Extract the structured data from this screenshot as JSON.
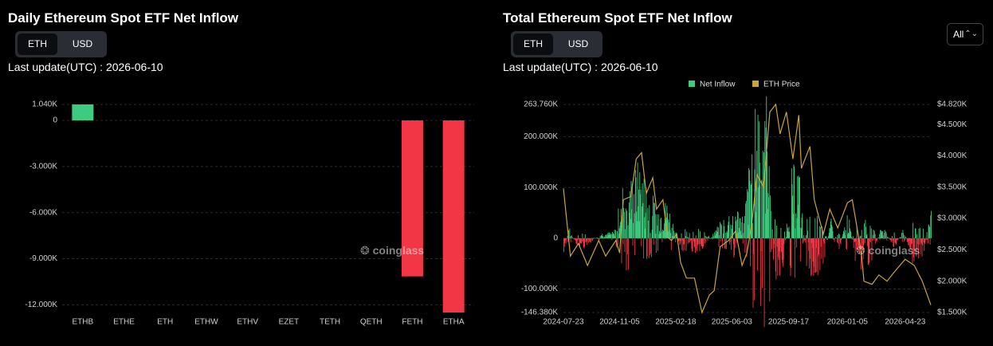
{
  "left": {
    "title": "Daily Ethereum Spot ETF Net Inflow",
    "toggle": {
      "eth": "ETH",
      "usd": "USD",
      "active": "ETH"
    },
    "last_update": "Last update(UTC) : 2026-06-10",
    "watermark": "coinglass"
  },
  "right": {
    "title": "Total Ethereum Spot ETF Net Inflow",
    "toggle": {
      "eth": "ETH",
      "usd": "USD",
      "active": "ETH"
    },
    "last_update": "Last update(UTC) : 2026-06-10",
    "range_select": "All",
    "watermark": "coinglass"
  },
  "colors": {
    "positive": "#3ccb7f",
    "negative": "#f23645",
    "price": "#c9a43a",
    "grid": "#2a2a2a",
    "axis_text": "#cfcfcf"
  },
  "chart_data": [
    {
      "type": "bar",
      "categories": [
        "ETHB",
        "ETHE",
        "ETH",
        "ETHW",
        "ETHV",
        "EZET",
        "TETH",
        "QETH",
        "FETH",
        "ETHA"
      ],
      "values": [
        1040,
        0,
        0,
        0,
        0,
        0,
        0,
        0,
        -10150,
        -12500
      ],
      "ylim": [
        -12500,
        1040
      ],
      "yticks": [
        1040,
        0,
        -3000,
        -6000,
        -9000,
        -12000
      ],
      "ytick_labels": [
        "1.040K",
        "0",
        "-3.000K",
        "-6.000K",
        "-9.000K",
        "-12.000K"
      ],
      "grid": true
    },
    {
      "type": "bar+line",
      "legend": [
        "Net Inflow",
        "ETH Price"
      ],
      "legend_position": "top-center",
      "x_start": "2024-07-23",
      "x_end": "2026-06-10",
      "xtick_labels": [
        "2024-07-23",
        "2024-11-05",
        "2025-02-18",
        "2025-06-03",
        "2025-09-17",
        "2026-01-05",
        "2026-04-23"
      ],
      "y_left_lim": [
        -146380,
        263760
      ],
      "y_left_ticks": [
        263760,
        200000,
        100000,
        0,
        -100000,
        -146380
      ],
      "y_left_tick_labels": [
        "263.760K",
        "200.000K",
        "100.000K",
        "0",
        "-100.000K",
        "-146.380K"
      ],
      "y_right_lim": [
        1500,
        4820
      ],
      "y_right_ticks": [
        4820,
        4500,
        4000,
        3500,
        3000,
        2500,
        2000,
        1500
      ],
      "y_right_tick_labels": [
        "$4.820K",
        "$4.500K",
        "$4.000K",
        "$3.500K",
        "$3.000K",
        "$2.500K",
        "$2.000K",
        "$1.500K"
      ],
      "price_points": [
        [
          "2024-07-23",
          3480
        ],
        [
          "2024-08-05",
          2400
        ],
        [
          "2024-08-20",
          2600
        ],
        [
          "2024-09-06",
          2250
        ],
        [
          "2024-09-27",
          2650
        ],
        [
          "2024-10-10",
          2400
        ],
        [
          "2024-10-29",
          2650
        ],
        [
          "2024-11-05",
          2450
        ],
        [
          "2024-11-12",
          3300
        ],
        [
          "2024-11-26",
          3350
        ],
        [
          "2024-12-06",
          3950
        ],
        [
          "2024-12-16",
          4050
        ],
        [
          "2024-12-25",
          3400
        ],
        [
          "2025-01-06",
          3650
        ],
        [
          "2025-01-13",
          3150
        ],
        [
          "2025-01-25",
          3300
        ],
        [
          "2025-02-03",
          2700
        ],
        [
          "2025-02-10",
          2650
        ],
        [
          "2025-02-20",
          2750
        ],
        [
          "2025-02-27",
          2300
        ],
        [
          "2025-03-10",
          2050
        ],
        [
          "2025-03-25",
          2050
        ],
        [
          "2025-04-08",
          1500
        ],
        [
          "2025-04-22",
          1780
        ],
        [
          "2025-05-01",
          1850
        ],
        [
          "2025-05-12",
          2550
        ],
        [
          "2025-05-28",
          2650
        ],
        [
          "2025-06-10",
          2800
        ],
        [
          "2025-06-22",
          2250
        ],
        [
          "2025-07-01",
          2450
        ],
        [
          "2025-07-10",
          2900
        ],
        [
          "2025-07-20",
          3700
        ],
        [
          "2025-08-01",
          3500
        ],
        [
          "2025-08-13",
          4700
        ],
        [
          "2025-08-24",
          4820
        ],
        [
          "2025-09-01",
          4350
        ],
        [
          "2025-09-13",
          4700
        ],
        [
          "2025-09-25",
          3950
        ],
        [
          "2025-10-06",
          4650
        ],
        [
          "2025-10-11",
          3800
        ],
        [
          "2025-10-27",
          4150
        ],
        [
          "2025-11-04",
          3300
        ],
        [
          "2025-11-21",
          2750
        ],
        [
          "2025-12-03",
          3150
        ],
        [
          "2025-12-18",
          2850
        ],
        [
          "2026-01-05",
          3250
        ],
        [
          "2026-01-14",
          3300
        ],
        [
          "2026-01-31",
          2450
        ],
        [
          "2026-02-05",
          2000
        ],
        [
          "2026-02-20",
          1950
        ],
        [
          "2026-03-05",
          2100
        ],
        [
          "2026-03-20",
          2000
        ],
        [
          "2026-04-03",
          2150
        ],
        [
          "2026-04-23",
          2350
        ],
        [
          "2026-05-10",
          2250
        ],
        [
          "2026-05-25",
          2000
        ],
        [
          "2026-06-10",
          1620
        ]
      ],
      "inflow_profile": [
        [
          "2024-07-23",
          -35000
        ],
        [
          "2024-08-01",
          18000
        ],
        [
          "2024-08-15",
          -12000
        ],
        [
          "2024-09-01",
          -15000
        ],
        [
          "2024-10-01",
          8000
        ],
        [
          "2024-10-25",
          9000
        ],
        [
          "2024-11-10",
          75000
        ],
        [
          "2024-11-25",
          85000
        ],
        [
          "2024-12-10",
          110000
        ],
        [
          "2024-12-25",
          80000
        ],
        [
          "2025-01-15",
          45000
        ],
        [
          "2025-02-01",
          55000
        ],
        [
          "2025-02-15",
          18000
        ],
        [
          "2025-03-01",
          -28000
        ],
        [
          "2025-03-15",
          -18000
        ],
        [
          "2025-04-01",
          -22000
        ],
        [
          "2025-04-20",
          -8000
        ],
        [
          "2025-05-01",
          12000
        ],
        [
          "2025-05-20",
          32000
        ],
        [
          "2025-06-10",
          48000
        ],
        [
          "2025-06-25",
          30000
        ],
        [
          "2025-07-10",
          150000
        ],
        [
          "2025-07-25",
          235000
        ],
        [
          "2025-08-10",
          200000
        ],
        [
          "2025-08-20",
          -60000
        ],
        [
          "2025-09-05",
          -55000
        ],
        [
          "2025-09-20",
          95000
        ],
        [
          "2025-10-05",
          110000
        ],
        [
          "2025-10-20",
          -45000
        ],
        [
          "2025-11-05",
          -60000
        ],
        [
          "2025-11-20",
          -40000
        ],
        [
          "2025-12-05",
          28000
        ],
        [
          "2025-12-20",
          -20000
        ],
        [
          "2026-01-05",
          42000
        ],
        [
          "2026-01-20",
          -40000
        ],
        [
          "2026-02-05",
          -45000
        ],
        [
          "2026-02-20",
          -30000
        ],
        [
          "2026-03-10",
          22000
        ],
        [
          "2026-04-01",
          -18000
        ],
        [
          "2026-04-20",
          15000
        ],
        [
          "2026-05-05",
          -35000
        ],
        [
          "2026-05-25",
          -38000
        ],
        [
          "2026-06-08",
          46000
        ]
      ]
    }
  ]
}
